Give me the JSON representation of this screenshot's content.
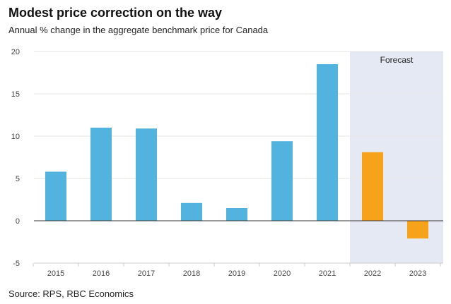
{
  "title": "Modest price correction on the way",
  "subtitle": "Annual % change in the aggregate benchmark price for Canada",
  "source": "Source: RPS, RBC Economics",
  "colors": {
    "actual": "#52b3de",
    "forecast": "#f7a21b",
    "forecast_band": "#e5e9f4",
    "grid": "#e6e6e6",
    "zero_line": "#333333"
  },
  "chart_data": {
    "type": "bar",
    "categories": [
      "2015",
      "2016",
      "2017",
      "2018",
      "2019",
      "2020",
      "2021",
      "2022",
      "2023"
    ],
    "values": [
      5.8,
      11.0,
      10.9,
      2.1,
      1.5,
      9.4,
      18.5,
      8.1,
      -2.1
    ],
    "forecast_categories": [
      "2022",
      "2023"
    ],
    "forecast_label": "Forecast",
    "ylim": [
      -5,
      20
    ],
    "yticks": [
      -5,
      0,
      5,
      10,
      15,
      20
    ],
    "grid": true,
    "legend": "none"
  }
}
